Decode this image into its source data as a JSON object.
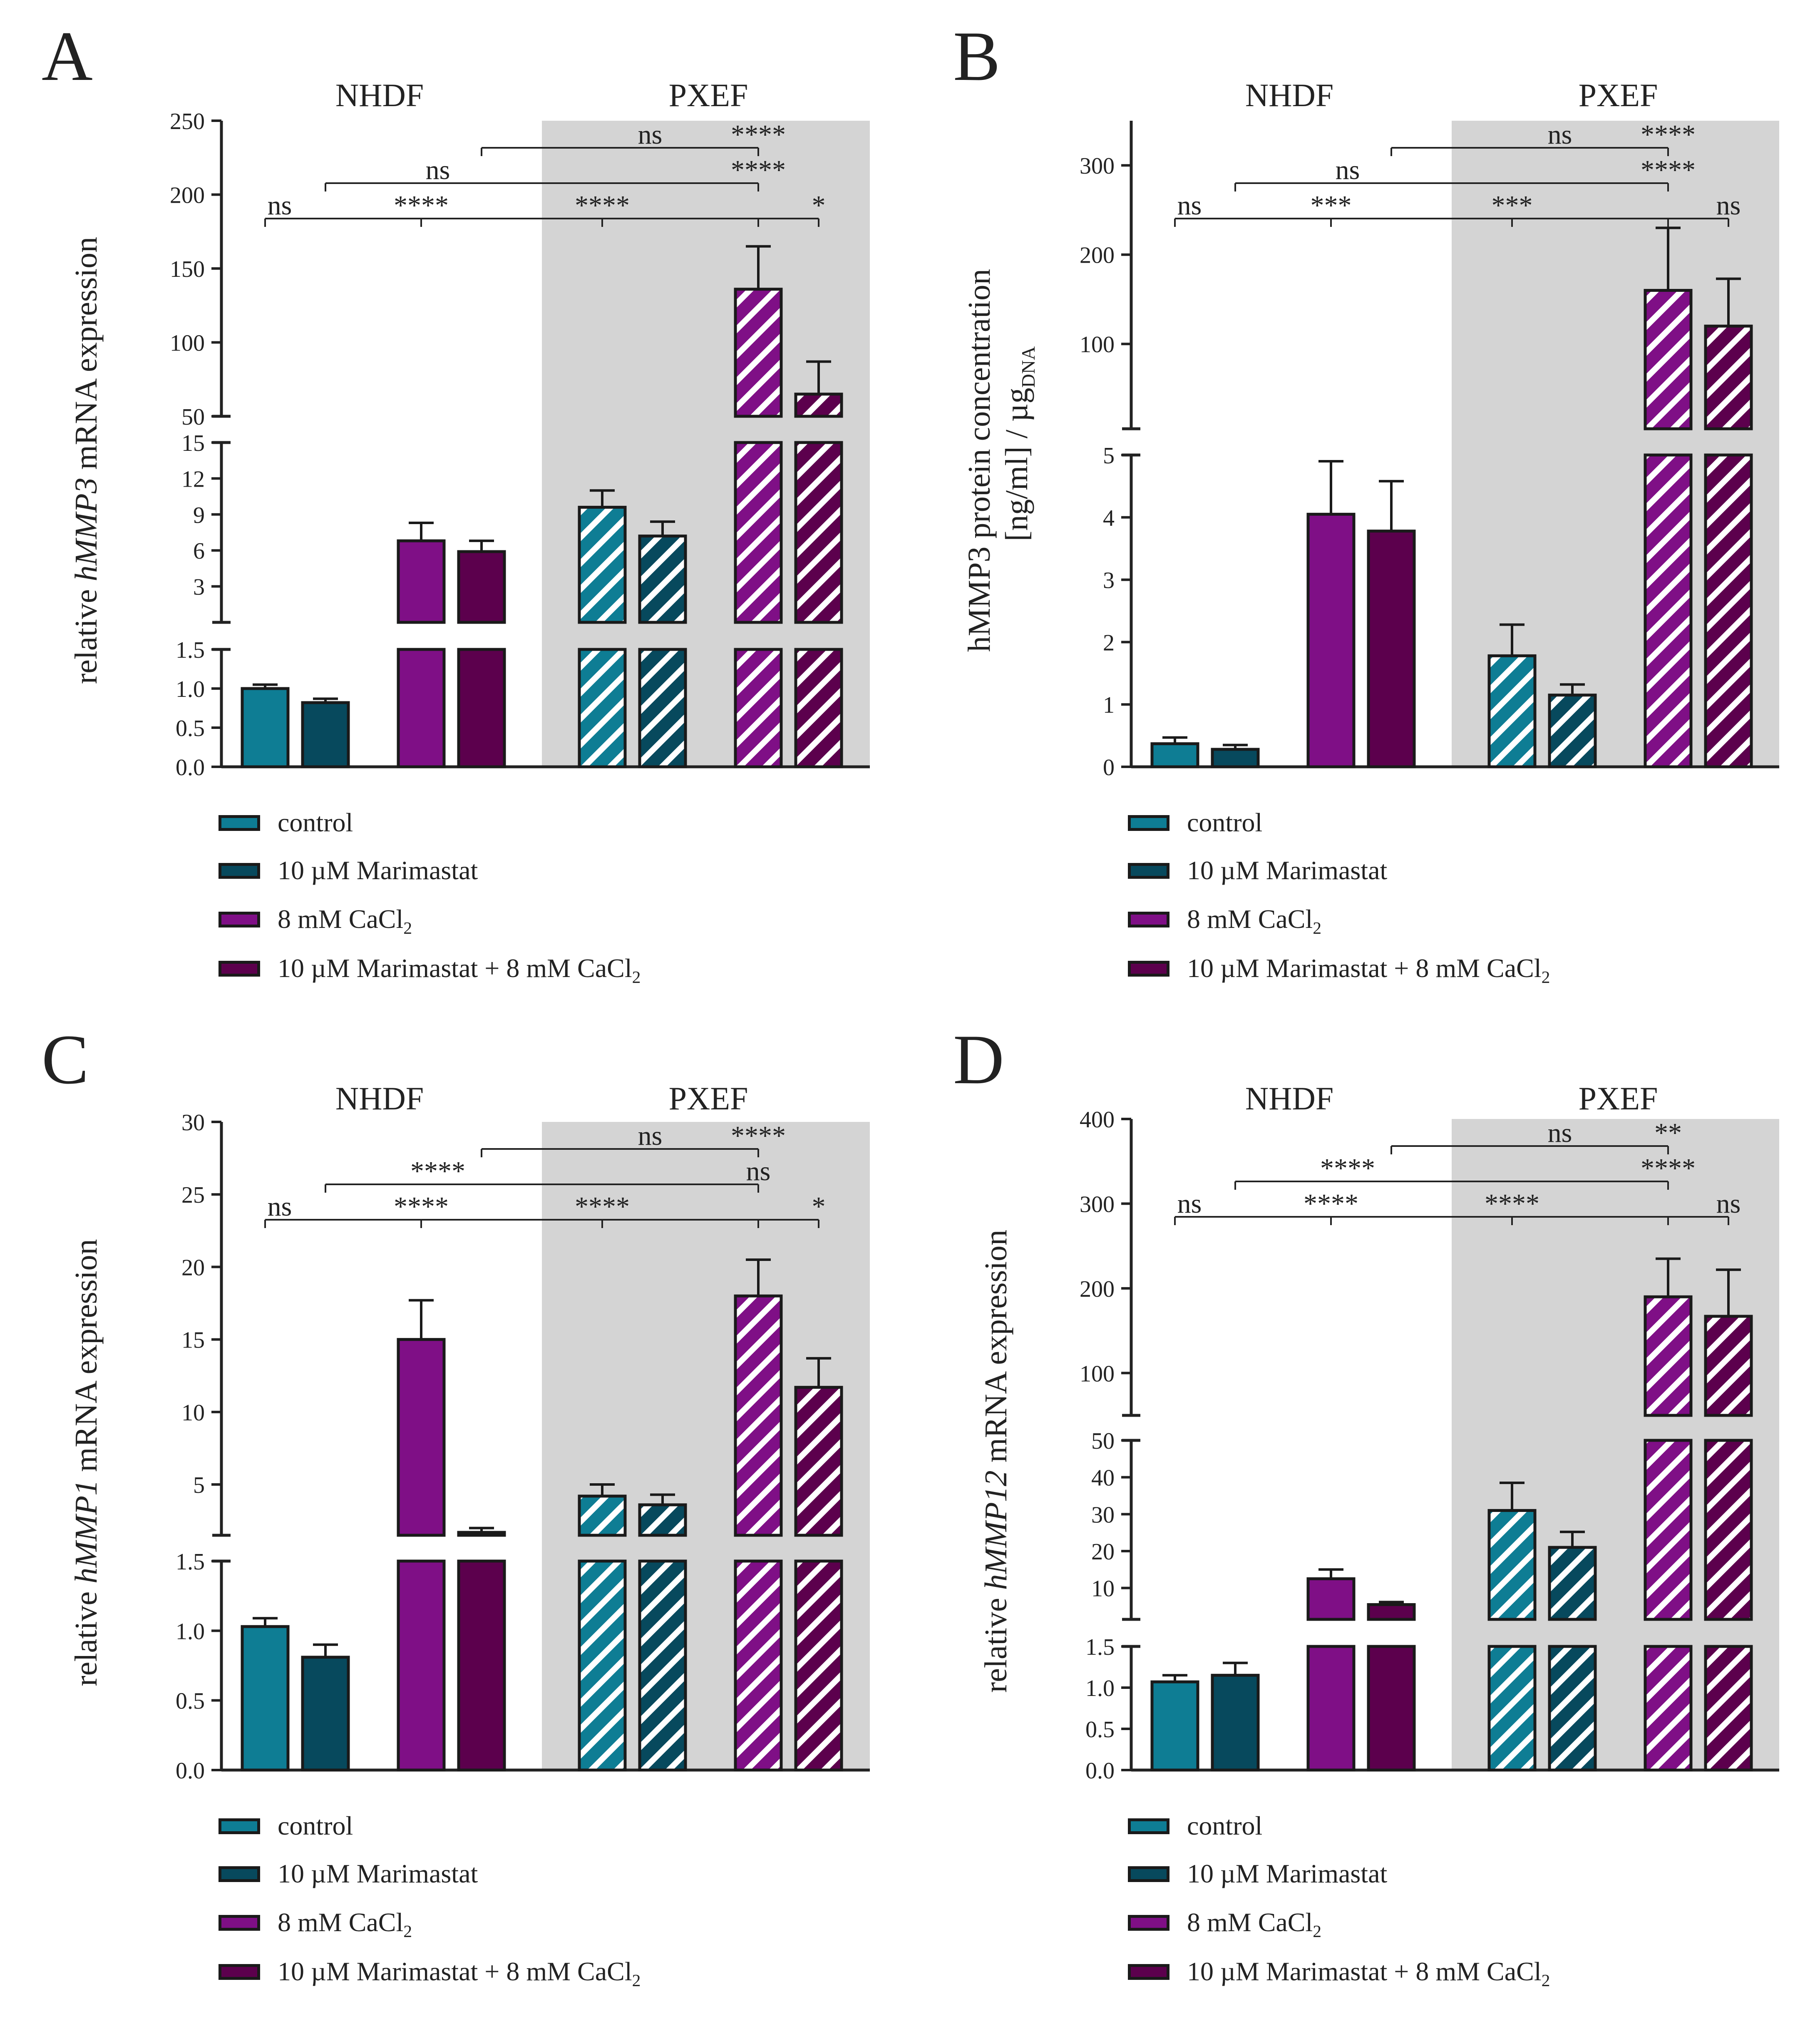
{
  "colors": {
    "control": "#0e7d94",
    "marimastat": "#07495d",
    "cacl2": "#7f0f86",
    "combo": "#5c004d",
    "pxef_background": "#d4d4d4",
    "hatch": "#ffffff",
    "axis": "#222222"
  },
  "groups": [
    "NHDF",
    "PXEF"
  ],
  "legend": [
    {
      "key": "control",
      "text": "control",
      "sub": ""
    },
    {
      "key": "marimastat",
      "text": "10 µM Marimastat",
      "sub": ""
    },
    {
      "key": "cacl2",
      "text": "8 mM CaCl",
      "sub": "2"
    },
    {
      "key": "combo",
      "text": "10 µM Marimastat + 8 mM CaCl",
      "sub": "2"
    }
  ],
  "chart_data": [
    {
      "panel": "A",
      "type": "bar",
      "ylabel": {
        "prefix": "relative ",
        "italic": "hMMP3",
        "suffix": " mRNA expression",
        "sub": ""
      },
      "categories": [
        "NHDF control",
        "NHDF 10 µM Marimastat",
        "NHDF 8 mM CaCl2",
        "NHDF 10 µM Marimastat + 8 mM CaCl2",
        "PXEF control",
        "PXEF 10 µM Marimastat",
        "PXEF 8 mM CaCl2",
        "PXEF 10 µM Marimastat + 8 mM CaCl2"
      ],
      "values": [
        1.0,
        0.82,
        6.8,
        5.9,
        9.6,
        7.2,
        136,
        65
      ],
      "errors": [
        0.05,
        0.05,
        1.5,
        0.9,
        1.4,
        1.2,
        29,
        22
      ],
      "segments": [
        {
          "ylim": [
            0,
            1.5
          ],
          "ticks": [
            "0.0",
            "0.5",
            "1.0",
            "1.5"
          ]
        },
        {
          "ylim": [
            0,
            15
          ],
          "ticks": [
            "3",
            "6",
            "9",
            "12",
            "15"
          ]
        },
        {
          "ylim": [
            50,
            250
          ],
          "ticks": [
            "50",
            "100",
            "150",
            "200",
            "250"
          ]
        }
      ],
      "significance": [
        {
          "from": 0,
          "to": 4,
          "level": 0,
          "label": "ns"
        },
        {
          "from": 2,
          "to": 4,
          "level": 0,
          "label": "****"
        },
        {
          "from": 4,
          "to": 6,
          "level": 0,
          "label": "****"
        },
        {
          "from": 6,
          "to": 7,
          "level": 0,
          "label": "*"
        },
        {
          "from": 1,
          "to": 6,
          "level": 1,
          "label": "ns"
        },
        {
          "from": 1,
          "to": 6,
          "level": 1,
          "label": "****"
        },
        {
          "from": 3,
          "to": 6,
          "level": 2,
          "label": "ns"
        },
        {
          "from": 3,
          "to": 6,
          "level": 2,
          "label": "****"
        }
      ]
    },
    {
      "panel": "B",
      "type": "bar",
      "ylabel": {
        "prefix": "hMMP3 protein concentration",
        "italic": "",
        "suffix": "[ng/ml] / µg",
        "sub": "DNA"
      },
      "categories": [
        "NHDF control",
        "NHDF 10 µM Marimastat",
        "NHDF 8 mM CaCl2",
        "NHDF 10 µM Marimastat + 8 mM CaCl2",
        "PXEF control",
        "PXEF 10 µM Marimastat",
        "PXEF 8 mM CaCl2",
        "PXEF 10 µM Marimastat + 8 mM CaCl2"
      ],
      "values": [
        0.37,
        0.28,
        4.05,
        3.78,
        1.78,
        1.15,
        160,
        120
      ],
      "errors": [
        0.1,
        0.07,
        0.85,
        0.8,
        0.5,
        0.17,
        70,
        53
      ],
      "segments": [
        {
          "ylim": [
            0,
            5
          ],
          "ticks": [
            "0",
            "1",
            "2",
            "3",
            "4",
            "5"
          ]
        },
        {
          "ylim": [
            5,
            350
          ],
          "ticks": [
            "100",
            "200",
            "300"
          ]
        }
      ],
      "significance": [
        {
          "from": 0,
          "to": 4,
          "level": 0,
          "label": "ns"
        },
        {
          "from": 2,
          "to": 4,
          "level": 0,
          "label": "***"
        },
        {
          "from": 4,
          "to": 6,
          "level": 0,
          "label": "***"
        },
        {
          "from": 6,
          "to": 7,
          "level": 0,
          "label": "ns"
        },
        {
          "from": 1,
          "to": 6,
          "level": 1,
          "label": "ns"
        },
        {
          "from": 1,
          "to": 6,
          "level": 1,
          "label": "****"
        },
        {
          "from": 3,
          "to": 6,
          "level": 2,
          "label": "ns"
        },
        {
          "from": 3,
          "to": 6,
          "level": 2,
          "label": "****"
        }
      ]
    },
    {
      "panel": "C",
      "type": "bar",
      "ylabel": {
        "prefix": "relative ",
        "italic": "hMMP1",
        "suffix": " mRNA expression",
        "sub": ""
      },
      "categories": [
        "NHDF control",
        "NHDF 10 µM Marimastat",
        "NHDF 8 mM CaCl2",
        "NHDF 10 µM Marimastat + 8 mM CaCl2",
        "PXEF control",
        "PXEF 10 µM Marimastat",
        "PXEF 8 mM CaCl2",
        "PXEF 10 µM Marimastat + 8 mM CaCl2"
      ],
      "values": [
        1.03,
        0.81,
        15.0,
        1.7,
        4.2,
        3.6,
        18.0,
        11.7
      ],
      "errors": [
        0.06,
        0.09,
        2.7,
        0.3,
        0.8,
        0.7,
        2.5,
        2.0
      ],
      "segments": [
        {
          "ylim": [
            0,
            1.5
          ],
          "ticks": [
            "0.0",
            "0.5",
            "1.0",
            "1.5"
          ]
        },
        {
          "ylim": [
            1.5,
            30
          ],
          "ticks": [
            "5",
            "10",
            "15",
            "20",
            "25",
            "30"
          ]
        }
      ],
      "significance": [
        {
          "from": 0,
          "to": 4,
          "level": 0,
          "label": "ns"
        },
        {
          "from": 2,
          "to": 4,
          "level": 0,
          "label": "****"
        },
        {
          "from": 4,
          "to": 6,
          "level": 0,
          "label": "****"
        },
        {
          "from": 6,
          "to": 7,
          "level": 0,
          "label": "*"
        },
        {
          "from": 1,
          "to": 6,
          "level": 1,
          "label": "****"
        },
        {
          "from": 1,
          "to": 6,
          "level": 1,
          "label": "ns"
        },
        {
          "from": 3,
          "to": 6,
          "level": 2,
          "label": "ns"
        },
        {
          "from": 3,
          "to": 6,
          "level": 2,
          "label": "****"
        }
      ]
    },
    {
      "panel": "D",
      "type": "bar",
      "ylabel": {
        "prefix": "relative ",
        "italic": "hMMP12",
        "suffix": " mRNA expression",
        "sub": ""
      },
      "categories": [
        "NHDF control",
        "NHDF 10 µM Marimastat",
        "NHDF 8 mM CaCl2",
        "NHDF 10 µM Marimastat + 8 mM CaCl2",
        "PXEF control",
        "PXEF 10 µM Marimastat",
        "PXEF 8 mM CaCl2",
        "PXEF 10 µM Marimastat + 8 mM CaCl2"
      ],
      "values": [
        1.07,
        1.15,
        12.5,
        5.5,
        31,
        21,
        190,
        167
      ],
      "errors": [
        0.08,
        0.15,
        2.5,
        0.7,
        7.5,
        4.2,
        45,
        55
      ],
      "segments": [
        {
          "ylim": [
            0,
            1.5
          ],
          "ticks": [
            "0.0",
            "0.5",
            "1.0",
            "1.5"
          ]
        },
        {
          "ylim": [
            1.5,
            50
          ],
          "ticks": [
            "10",
            "20",
            "30",
            "40",
            "50"
          ]
        },
        {
          "ylim": [
            50,
            400
          ],
          "ticks": [
            "100",
            "200",
            "300",
            "400"
          ]
        }
      ],
      "significance": [
        {
          "from": 0,
          "to": 4,
          "level": 0,
          "label": "ns"
        },
        {
          "from": 2,
          "to": 4,
          "level": 0,
          "label": "****"
        },
        {
          "from": 4,
          "to": 6,
          "level": 0,
          "label": "****"
        },
        {
          "from": 6,
          "to": 7,
          "level": 0,
          "label": "ns"
        },
        {
          "from": 1,
          "to": 6,
          "level": 1,
          "label": "****"
        },
        {
          "from": 1,
          "to": 6,
          "level": 1,
          "label": "****"
        },
        {
          "from": 3,
          "to": 6,
          "level": 2,
          "label": "ns"
        },
        {
          "from": 3,
          "to": 6,
          "level": 2,
          "label": "**"
        }
      ]
    }
  ]
}
